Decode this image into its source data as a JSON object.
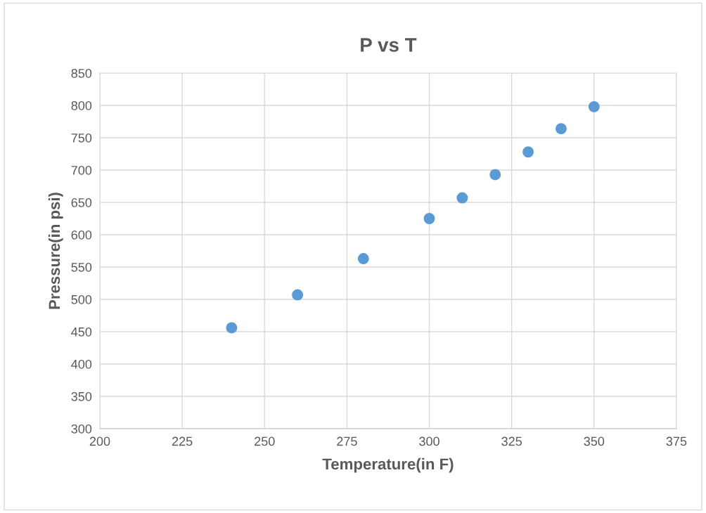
{
  "chart_data": {
    "type": "scatter",
    "title": "P vs T",
    "xlabel": "Temperature(in F)",
    "ylabel": "Pressure(in psi)",
    "x": [
      240,
      260,
      280,
      300,
      310,
      320,
      330,
      340,
      350
    ],
    "series": [
      {
        "color": "#5b9bd5",
        "values": [
          456,
          507,
          563,
          625,
          657,
          693,
          728,
          764,
          798
        ]
      }
    ],
    "xlim": [
      200,
      375
    ],
    "xticks": [
      200,
      225,
      250,
      275,
      300,
      325,
      350,
      375
    ],
    "ylim": [
      300,
      850
    ],
    "yticks": [
      300,
      350,
      400,
      450,
      500,
      550,
      600,
      650,
      700,
      750,
      800,
      850
    ],
    "grid": true,
    "marker": "circle"
  }
}
